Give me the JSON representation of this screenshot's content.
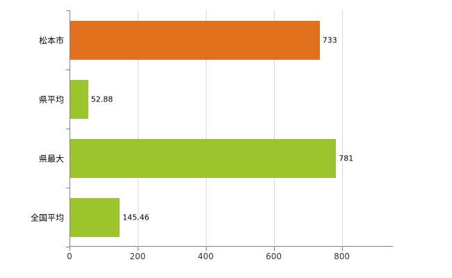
{
  "chart_data": {
    "type": "bar",
    "orientation": "horizontal",
    "title": "",
    "xlabel": "",
    "ylabel": "",
    "categories": [
      "松本市",
      "県平均",
      "県最大",
      "全国平均"
    ],
    "values": [
      733,
      52.88,
      781,
      145.46
    ],
    "value_labels": [
      "733",
      "52.88",
      "781",
      "145.46"
    ],
    "bar_colors": [
      "#e2711d",
      "#9cc52d",
      "#9cc52d",
      "#9cc52d"
    ],
    "xlim": [
      0,
      950
    ],
    "x_ticks": [
      0,
      200,
      400,
      600,
      800
    ],
    "x_tick_labels": [
      "0",
      "200",
      "400",
      "600",
      "800"
    ],
    "grid": "vertical",
    "legend": "none"
  },
  "colors": {
    "axis": "#808080",
    "gridline": "#d9d9d9",
    "background": "#ffffff",
    "text": "#000000"
  }
}
